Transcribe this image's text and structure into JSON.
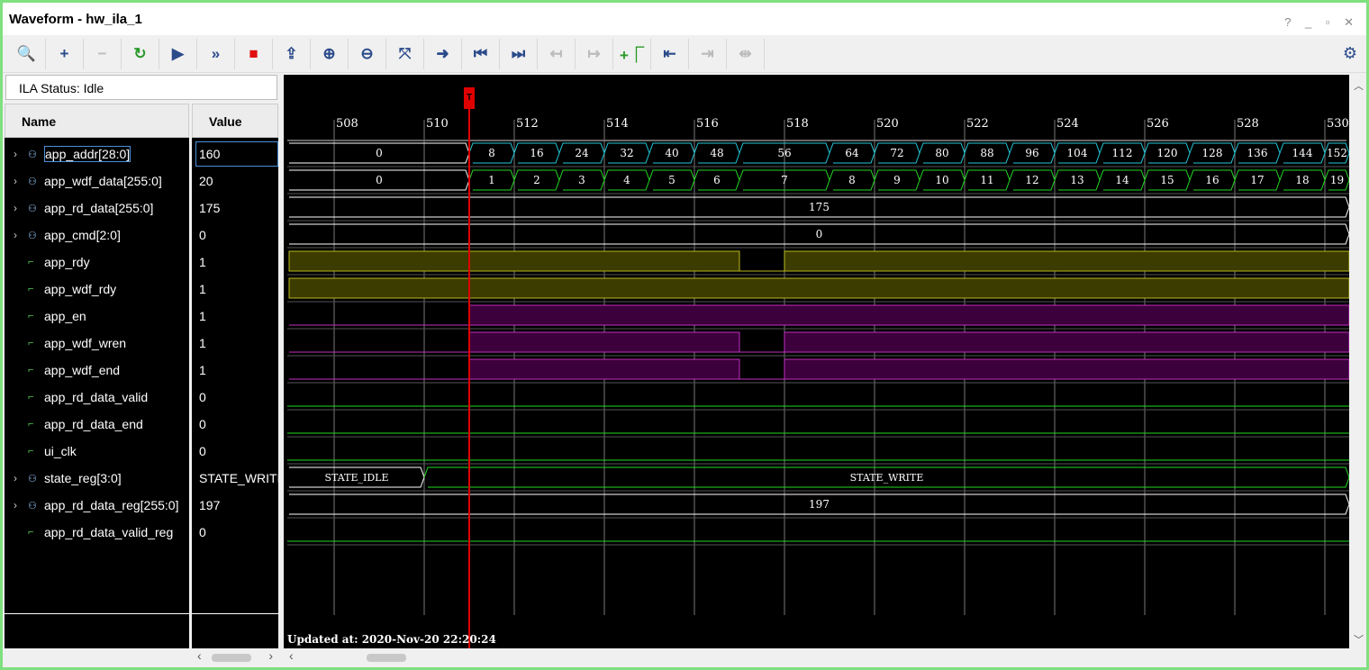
{
  "title": "Waveform - hw_ila_1",
  "window_controls": "? _ ▫ ✕",
  "toolbar": [
    {
      "icon": "search-icon",
      "glyph": "🔍",
      "enabled": true
    },
    {
      "icon": "add-icon",
      "glyph": "+",
      "enabled": true
    },
    {
      "icon": "remove-icon",
      "glyph": "−",
      "enabled": false
    },
    {
      "icon": "run-trigger-immediate-icon",
      "glyph": "↻",
      "enabled": true
    },
    {
      "icon": "run-trigger-icon",
      "glyph": "▶",
      "enabled": true
    },
    {
      "icon": "run-immediate-icon",
      "glyph": "»",
      "enabled": true
    },
    {
      "icon": "stop-icon",
      "glyph": "■",
      "enabled": true
    },
    {
      "icon": "export-icon",
      "glyph": "⇪",
      "enabled": true
    },
    {
      "icon": "zoom-in-icon",
      "glyph": "⊕",
      "enabled": true
    },
    {
      "icon": "zoom-out-icon",
      "glyph": "⊖",
      "enabled": true
    },
    {
      "icon": "zoom-fit-icon",
      "glyph": "⤧",
      "enabled": true
    },
    {
      "icon": "go-to-cursor-icon",
      "glyph": "➜",
      "enabled": true
    },
    {
      "icon": "go-to-time-zero-icon",
      "glyph": "⏮",
      "enabled": true
    },
    {
      "icon": "go-to-last-time-icon",
      "glyph": "⏭",
      "enabled": true
    },
    {
      "icon": "previous-transition-icon",
      "glyph": "↤",
      "enabled": false
    },
    {
      "icon": "next-transition-icon",
      "glyph": "↦",
      "enabled": false
    },
    {
      "icon": "add-marker-icon",
      "glyph": "+⎾",
      "enabled": true
    },
    {
      "icon": "previous-marker-icon",
      "glyph": "⇤",
      "enabled": true
    },
    {
      "icon": "next-marker-icon",
      "glyph": "⇥",
      "enabled": false
    },
    {
      "icon": "swap-cursors-icon",
      "glyph": "⇹",
      "enabled": false
    }
  ],
  "settings_icon": "gear-icon",
  "ila_status": "ILA Status:  Idle",
  "columns": {
    "name": "Name",
    "value": "Value"
  },
  "signals": [
    {
      "name": "app_addr[28:0]",
      "value": "160",
      "kind": "bus",
      "color": "#22c8d8",
      "segments": [
        [
          507,
          511,
          "0"
        ],
        [
          511,
          512,
          "8"
        ],
        [
          512,
          513,
          "16"
        ],
        [
          513,
          514,
          "24"
        ],
        [
          514,
          515,
          "32"
        ],
        [
          515,
          516,
          "40"
        ],
        [
          516,
          517,
          "48"
        ],
        [
          517,
          519,
          "56"
        ],
        [
          519,
          520,
          "64"
        ],
        [
          520,
          521,
          "72"
        ],
        [
          521,
          522,
          "80"
        ],
        [
          522,
          523,
          "88"
        ],
        [
          523,
          524,
          "96"
        ],
        [
          524,
          525,
          "104"
        ],
        [
          525,
          526,
          "112"
        ],
        [
          526,
          527,
          "120"
        ],
        [
          527,
          528,
          "128"
        ],
        [
          528,
          529,
          "136"
        ],
        [
          529,
          530,
          "144"
        ],
        [
          530,
          531,
          "152"
        ]
      ]
    },
    {
      "name": "app_wdf_data[255:0]",
      "value": "20",
      "kind": "bus",
      "color": "#22d822",
      "segments": [
        [
          507,
          511,
          "0"
        ],
        [
          511,
          512,
          "1"
        ],
        [
          512,
          513,
          "2"
        ],
        [
          513,
          514,
          "3"
        ],
        [
          514,
          515,
          "4"
        ],
        [
          515,
          516,
          "5"
        ],
        [
          516,
          517,
          "6"
        ],
        [
          517,
          519,
          "7"
        ],
        [
          519,
          520,
          "8"
        ],
        [
          520,
          521,
          "9"
        ],
        [
          521,
          522,
          "10"
        ],
        [
          522,
          523,
          "11"
        ],
        [
          523,
          524,
          "12"
        ],
        [
          524,
          525,
          "13"
        ],
        [
          525,
          526,
          "14"
        ],
        [
          526,
          527,
          "15"
        ],
        [
          527,
          528,
          "16"
        ],
        [
          528,
          529,
          "17"
        ],
        [
          529,
          530,
          "18"
        ],
        [
          530,
          531,
          "19"
        ]
      ]
    },
    {
      "name": "app_rd_data[255:0]",
      "value": "175",
      "kind": "bus",
      "color": "#ffffff",
      "segments": [
        [
          507,
          531.6,
          "175"
        ]
      ]
    },
    {
      "name": "app_cmd[2:0]",
      "value": "0",
      "kind": "bus",
      "color": "#ffffff",
      "segments": [
        [
          507,
          531.6,
          "0"
        ]
      ]
    },
    {
      "name": "app_rdy",
      "value": "1",
      "kind": "bit",
      "color": "#b8b820",
      "high": [
        [
          507,
          517
        ],
        [
          518,
          531.6
        ]
      ]
    },
    {
      "name": "app_wdf_rdy",
      "value": "1",
      "kind": "bit",
      "color": "#b8b820",
      "high": [
        [
          507,
          531.6
        ]
      ]
    },
    {
      "name": "app_en",
      "value": "1",
      "kind": "bit",
      "color": "#c030c0",
      "high": [
        [
          511,
          531.6
        ]
      ]
    },
    {
      "name": "app_wdf_wren",
      "value": "1",
      "kind": "bit",
      "color": "#c030c0",
      "high": [
        [
          511,
          517
        ],
        [
          518,
          531.6
        ]
      ]
    },
    {
      "name": "app_wdf_end",
      "value": "1",
      "kind": "bit",
      "color": "#c030c0",
      "high": [
        [
          511,
          517
        ],
        [
          518,
          531.6
        ]
      ]
    },
    {
      "name": "app_rd_data_valid",
      "value": "0",
      "kind": "bit",
      "color": "#22d822",
      "high": []
    },
    {
      "name": "app_rd_data_end",
      "value": "0",
      "kind": "bit",
      "color": "#22d822",
      "high": []
    },
    {
      "name": "ui_clk",
      "value": "0",
      "kind": "bit",
      "color": "#22d822",
      "high": []
    },
    {
      "name": "state_reg[3:0]",
      "value": "STATE_WRITE",
      "kind": "bus",
      "color": "#22d822",
      "segments": [
        [
          507,
          510,
          "STATE_IDLE"
        ],
        [
          510,
          531.6,
          "STATE_WRITE"
        ]
      ]
    },
    {
      "name": "app_rd_data_reg[255:0]",
      "value": "197",
      "kind": "bus",
      "color": "#ffffff",
      "segments": [
        [
          507,
          531.6,
          "197"
        ]
      ]
    },
    {
      "name": "app_rd_data_valid_reg",
      "value": "0",
      "kind": "bit",
      "color": "#22d822",
      "high": []
    }
  ],
  "time_ticks": [
    508,
    510,
    512,
    514,
    516,
    518,
    520,
    522,
    524,
    526,
    528,
    530
  ],
  "time_range": [
    507,
    531.6
  ],
  "trigger": {
    "time": 511,
    "label": "T",
    "color": "#e00000"
  },
  "updated": "Updated at: 2020-Nov-20 22:20:24"
}
